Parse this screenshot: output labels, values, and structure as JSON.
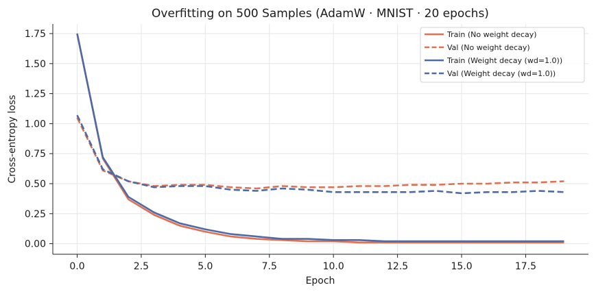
{
  "chart_data": {
    "type": "line",
    "title": "Overfitting on 500 Samples  (AdamW · MNIST · 20 epochs)",
    "xlabel": "Epoch",
    "ylabel": "Cross-entropy loss",
    "xlim": [
      -0.95,
      19.95
    ],
    "ylim": [
      -0.088,
      1.83
    ],
    "xticks": [
      0.0,
      2.5,
      5.0,
      7.5,
      10.0,
      12.5,
      15.0,
      17.5
    ],
    "xtick_labels": [
      "0.0",
      "2.5",
      "5.0",
      "7.5",
      "10.0",
      "12.5",
      "15.0",
      "17.5"
    ],
    "yticks": [
      0.0,
      0.25,
      0.5,
      0.75,
      1.0,
      1.25,
      1.5,
      1.75
    ],
    "ytick_labels": [
      "0.00",
      "0.25",
      "0.50",
      "0.75",
      "1.00",
      "1.25",
      "1.50",
      "1.75"
    ],
    "grid": true,
    "legend_position": "top-right",
    "x": [
      0,
      1,
      2,
      3,
      4,
      5,
      6,
      7,
      8,
      9,
      10,
      11,
      12,
      13,
      14,
      15,
      16,
      17,
      18,
      19
    ],
    "series": [
      {
        "name": "Train  (No weight decay)",
        "color": "#e07050",
        "dash": "solid",
        "values": [
          1.75,
          0.71,
          0.37,
          0.24,
          0.15,
          0.1,
          0.06,
          0.04,
          0.03,
          0.02,
          0.02,
          0.01,
          0.01,
          0.01,
          0.01,
          0.01,
          0.01,
          0.01,
          0.01,
          0.01
        ]
      },
      {
        "name": "Val  (No weight decay)",
        "color": "#e07050",
        "dash": "dashed",
        "values": [
          1.05,
          0.61,
          0.52,
          0.48,
          0.49,
          0.49,
          0.47,
          0.46,
          0.48,
          0.47,
          0.47,
          0.48,
          0.48,
          0.49,
          0.49,
          0.5,
          0.5,
          0.51,
          0.51,
          0.52
        ]
      },
      {
        "name": "Train  (Weight decay  (wd=1.0))",
        "color": "#4c6aa8",
        "dash": "solid",
        "values": [
          1.75,
          0.72,
          0.39,
          0.26,
          0.17,
          0.12,
          0.08,
          0.06,
          0.04,
          0.04,
          0.03,
          0.03,
          0.02,
          0.02,
          0.02,
          0.02,
          0.02,
          0.02,
          0.02,
          0.02
        ]
      },
      {
        "name": "Val  (Weight decay  (wd=1.0))",
        "color": "#4c6aa8",
        "dash": "dashed",
        "values": [
          1.07,
          0.62,
          0.52,
          0.47,
          0.48,
          0.48,
          0.45,
          0.44,
          0.46,
          0.45,
          0.43,
          0.43,
          0.43,
          0.43,
          0.44,
          0.42,
          0.43,
          0.43,
          0.44,
          0.43
        ]
      }
    ]
  }
}
